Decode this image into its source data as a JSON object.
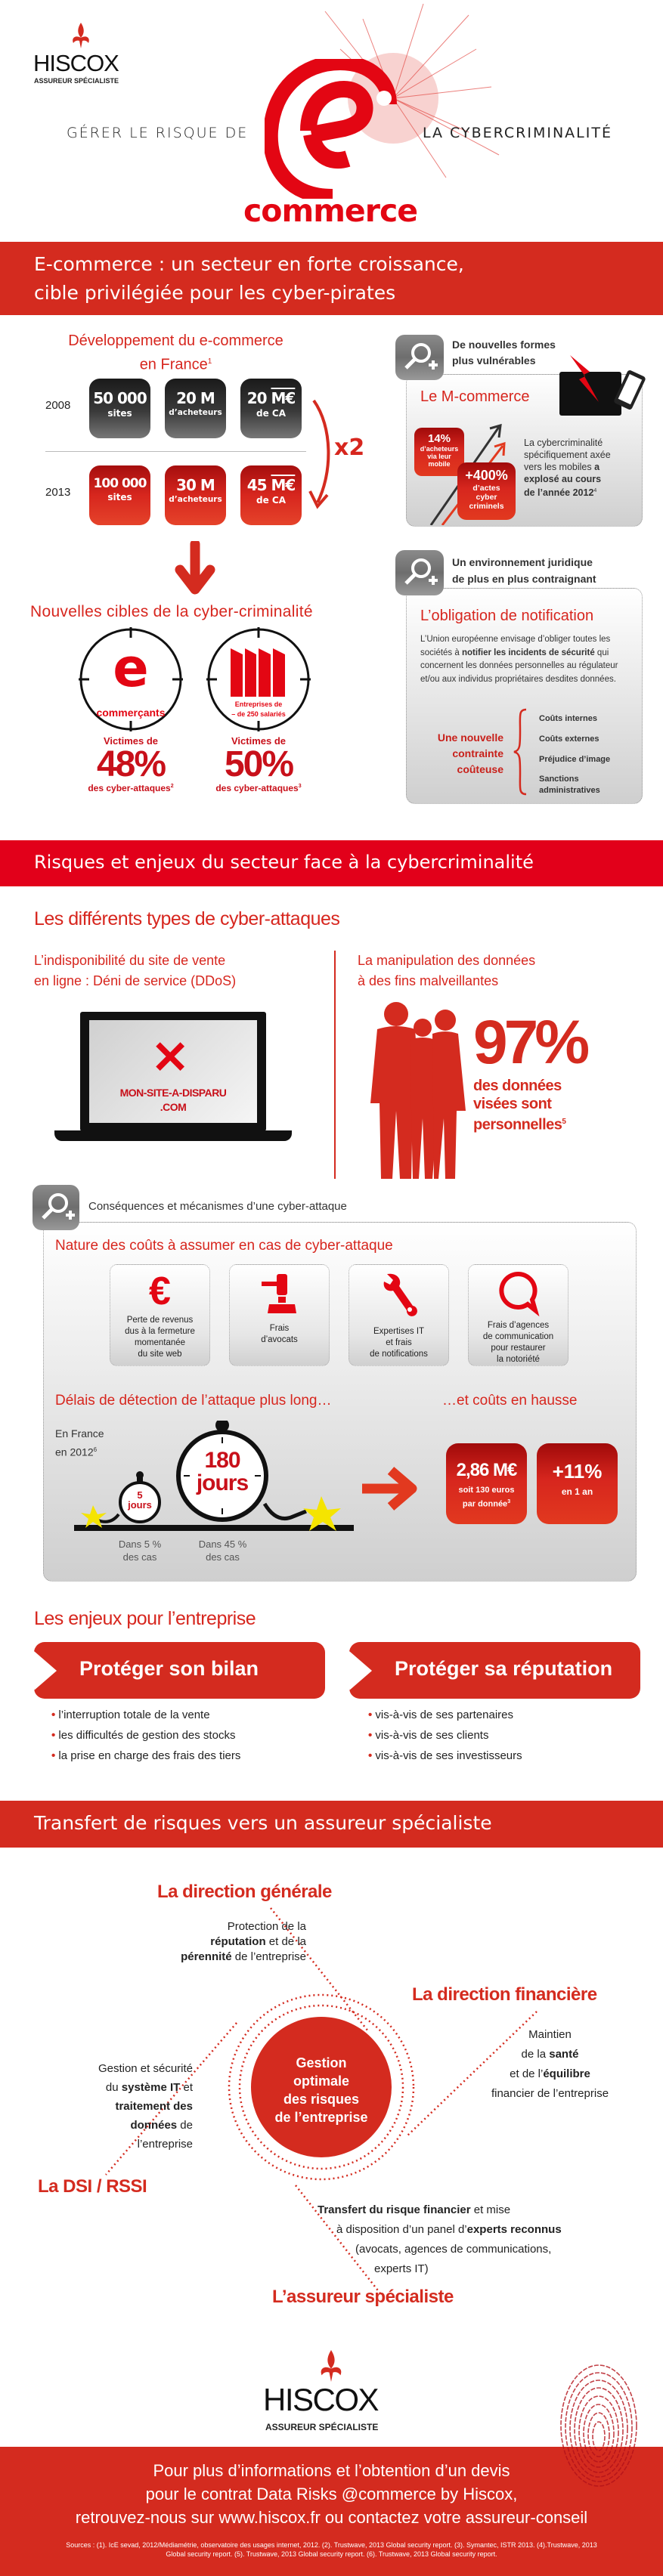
{
  "colors": {
    "brand_red": "#d42b1f",
    "banner_red": "#e2001a",
    "dark": "#222222"
  },
  "header": {
    "logo_text": "HISCOX",
    "logo_tagline": "ASSUREUR SPÉCIALISTE",
    "title_left": "GÉRER LE RISQUE DE",
    "title_right": "LA CYBERCRIMINALITÉ",
    "title_word": "commerce",
    "logo_icon": "fleur-de-lis-icon"
  },
  "section1": {
    "banner_line1": "E-commerce : un secteur en forte croissance,",
    "banner_line2": "cible privilégiée pour les cyber-pirates"
  },
  "development": {
    "title_line1": "Développement du e-commerce",
    "title_line2": "en France",
    "title_sup": "1",
    "multiplier": "x2",
    "rows": [
      {
        "year": "2008",
        "stats": [
          {
            "value": "50 000",
            "unit": "",
            "label": "sites"
          },
          {
            "value": "20 M",
            "unit": "",
            "label": "d’acheteurs"
          },
          {
            "value": "20 ",
            "unit": "M€",
            "label": "de CA"
          }
        ]
      },
      {
        "year": "2013",
        "stats": [
          {
            "value": "100 000",
            "unit": "",
            "label": "sites"
          },
          {
            "value": "30 M",
            "unit": "",
            "label": "d’acheteurs"
          },
          {
            "value": "45 ",
            "unit": "M€",
            "label": "de CA"
          }
        ]
      }
    ]
  },
  "targets": {
    "title": "Nouvelles cibles de la cyber-criminalité",
    "items": [
      {
        "icon_label": "commerçants",
        "victims": "Victimes de",
        "percent": "48%",
        "caption": "des cyber-attaques",
        "sup": "2"
      },
      {
        "icon_label_line1": "Entreprises de",
        "icon_label_line2": "– de 250 salariés",
        "victims": "Victimes de",
        "percent": "50%",
        "caption": "des cyber-attaques",
        "sup": "3"
      }
    ]
  },
  "mcommerce": {
    "heading_line1": "De nouvelles formes",
    "heading_line2": "plus vulnérables",
    "title": "Le M-commerce",
    "stat1": {
      "value": "14%",
      "lines": [
        "d’acheteurs",
        "via leur",
        "mobile"
      ]
    },
    "stat2": {
      "value": "+400%",
      "lines": [
        "d’actes",
        "cyber",
        "criminels"
      ]
    },
    "text_lines": [
      "La cybercriminalité",
      "spécifiquement axée",
      "vers les mobiles "
    ],
    "text_bold1": "a",
    "text_bold_lines": [
      "explosé au cours",
      "de l’année 2012"
    ],
    "sup": "4"
  },
  "legal": {
    "heading_line1": "Un environnement juridique",
    "heading_line2": "de plus en plus contraignant",
    "title": "L’obligation de notification",
    "p1": "L’Union européenne envisage d’obliger toutes les sociétés à ",
    "p_bold": "notifier les incidents de sécurité",
    "p2": " qui concernent les données personnelles au régulateur et/ou aux individus propriétaires desdites données.",
    "constraint_lines": [
      "Une nouvelle",
      "contrainte",
      "coûteuse"
    ],
    "costs": [
      "Coûts internes",
      "Coûts externes",
      "Préjudice d’image",
      "Sanctions administratives"
    ]
  },
  "section2": {
    "banner": "Risques et enjeux du secteur face à la cybercriminalité",
    "types_title": "Les différents types de cyber-attaques",
    "ddos_lines": [
      "L’indisponibilité du site de vente",
      "en ligne : Déni de service (DDoS)"
    ],
    "ddos_screen_line1": "MON-SITE-A-DISPARU",
    "ddos_screen_line2": ".COM",
    "data_lines": [
      "La manipulation des données",
      "à des fins malveillantes"
    ],
    "data_percent": "97%",
    "data_caption_lines": [
      "des données",
      "visées sont",
      "personnelles"
    ],
    "data_sup": "5"
  },
  "consequences": {
    "heading": "Conséquences et mécanismes d’une cyber-attaque",
    "costs_title": "Nature des coûts à assumer en cas de cyber-attaque",
    "tiles": [
      {
        "icon": "euro-icon",
        "lines": [
          "Perte de revenus",
          "dus à la fermeture",
          "momentanée",
          "du site web"
        ]
      },
      {
        "icon": "gavel-icon",
        "lines": [
          "Frais",
          "d’avocats"
        ]
      },
      {
        "icon": "wrench-icon",
        "lines": [
          "Expertises IT",
          "et frais",
          "de notifications"
        ]
      },
      {
        "icon": "speech-bubble-icon",
        "lines": [
          "Frais d’agences",
          "de communication",
          "pour restaurer",
          "la notoriété"
        ]
      }
    ],
    "delay_title": "Délais de détection de l’attaque plus long…",
    "cost_rise_title": "…et coûts en hausse",
    "context_line1": "En France",
    "context_line2": "en 2012",
    "context_sup": "6",
    "small_clock": {
      "value": "5",
      "unit": "jours",
      "caption_lines": [
        "Dans 5 %",
        "des cas"
      ]
    },
    "big_clock": {
      "value": "180",
      "unit": "jours",
      "caption_lines": [
        "Dans 45 %",
        "des cas"
      ]
    },
    "cost_box": {
      "value": "2,86 M€",
      "lines": [
        "soit 130 euros",
        "par donnée"
      ],
      "sup": "3"
    },
    "rise_box": {
      "value": "+11%",
      "line": "en 1 an"
    }
  },
  "stakes": {
    "title": "Les enjeux pour l’entreprise",
    "left": {
      "label": "Protéger son bilan",
      "bullets": [
        "l’interruption totale de la vente",
        "les difficultés de gestion des stocks",
        "la prise en charge des frais des tiers"
      ]
    },
    "right": {
      "label": "Protéger sa réputation",
      "bullets": [
        "vis-à-vis de ses partenaires",
        "vis-à-vis de ses clients",
        "vis-à-vis de ses investisseurs"
      ]
    }
  },
  "section3": {
    "banner": "Transfert de risques vers un assureur spécialiste",
    "center_lines": [
      "Gestion",
      "optimale",
      "des risques",
      "de l’entreprise"
    ],
    "dg": {
      "title": "La direction générale",
      "t1": "Protection de la",
      "b1": "réputation",
      "t2": " et de la",
      "b2": "pérennité",
      "t3": " de l’entreprise"
    },
    "df": {
      "title": "La direction financière",
      "t1": "Maintien",
      "t2": "de la ",
      "b1": "santé",
      "t3": "et de l’",
      "b2": "équilibre",
      "t4": "financier de l’entreprise"
    },
    "dsi": {
      "title": "La DSI / RSSI",
      "t1": "Gestion et sécurité",
      "t2": "du ",
      "b1": "système IT",
      "t3": " et",
      "b2": "traitement des",
      "b3": "données",
      "t4": " de",
      "t5": "l’entreprise"
    },
    "ins": {
      "title": "L’assureur spécialiste",
      "b1": "Transfert du risque financier",
      "t1": " et mise",
      "t2": "à disposition d’un panel d’",
      "b2": "experts reconnus",
      "t3": "(avocats, agences de communications,",
      "t4": "experts IT)"
    }
  },
  "footer": {
    "logo_text": "HISCOX",
    "logo_tagline": "ASSUREUR SPÉCIALISTE",
    "cta_lines": [
      "Pour plus d’informations et l’obtention d’un devis",
      "pour le contrat Data Risks @commerce by Hiscox,",
      "retrouvez-nous sur www.hiscox.fr ou contactez votre assureur-conseil"
    ],
    "sources_line1": "Sources : (1). IcE sevad, 2012/Médiamétrie, observatoire des usages internet, 2012. (2). Trustwave, 2013 Global security report. (3). Symantec, ISTR 2013. (4).Trustwave, 2013",
    "sources_line2": "Global security report. (5). Trustwave, 2013 Global security report. (6). Trustwave, 2013 Global security report."
  }
}
